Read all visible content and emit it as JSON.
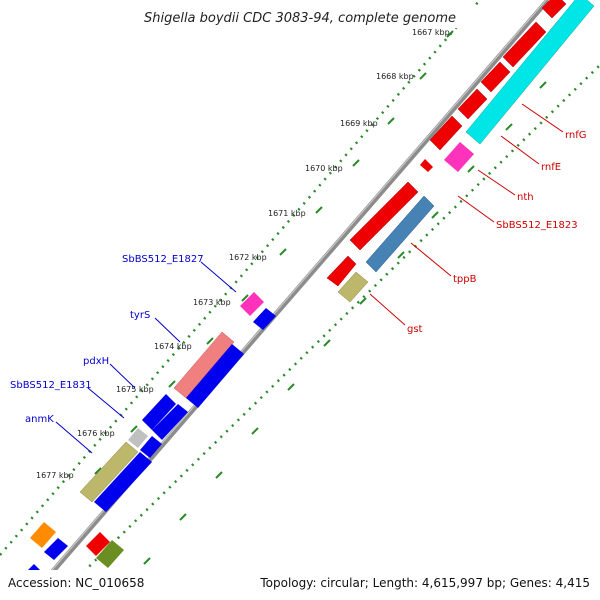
{
  "title": "Shigella boydii CDC 3083-94, complete genome",
  "footer": {
    "accession": "Accession: NC_010658",
    "summary": "Topology: circular; Length: 4,615,997 bp; Genes: 4,415"
  },
  "colors": {
    "backbone": "#8c8c8c",
    "dots": "#2a8a2a",
    "label_forward": "#0000cc",
    "label_reverse": "#cc0000"
  },
  "ticks": [
    "1667 kbp",
    "1668 kbp",
    "1669 kbp",
    "1670 kbp",
    "1671 kbp",
    "1672 kbp",
    "1673 kbp",
    "1674 kbp",
    "1675 kbp",
    "1676 kbp",
    "1677 kbp"
  ],
  "gene_labels": {
    "forward": [
      "SbBS512_E1827",
      "tyrS",
      "pdxH",
      "SbBS512_E1831",
      "anmK"
    ],
    "reverse": [
      "rnfG",
      "rnfE",
      "nth",
      "SbBS512_E1823",
      "tppB",
      "gst"
    ]
  }
}
